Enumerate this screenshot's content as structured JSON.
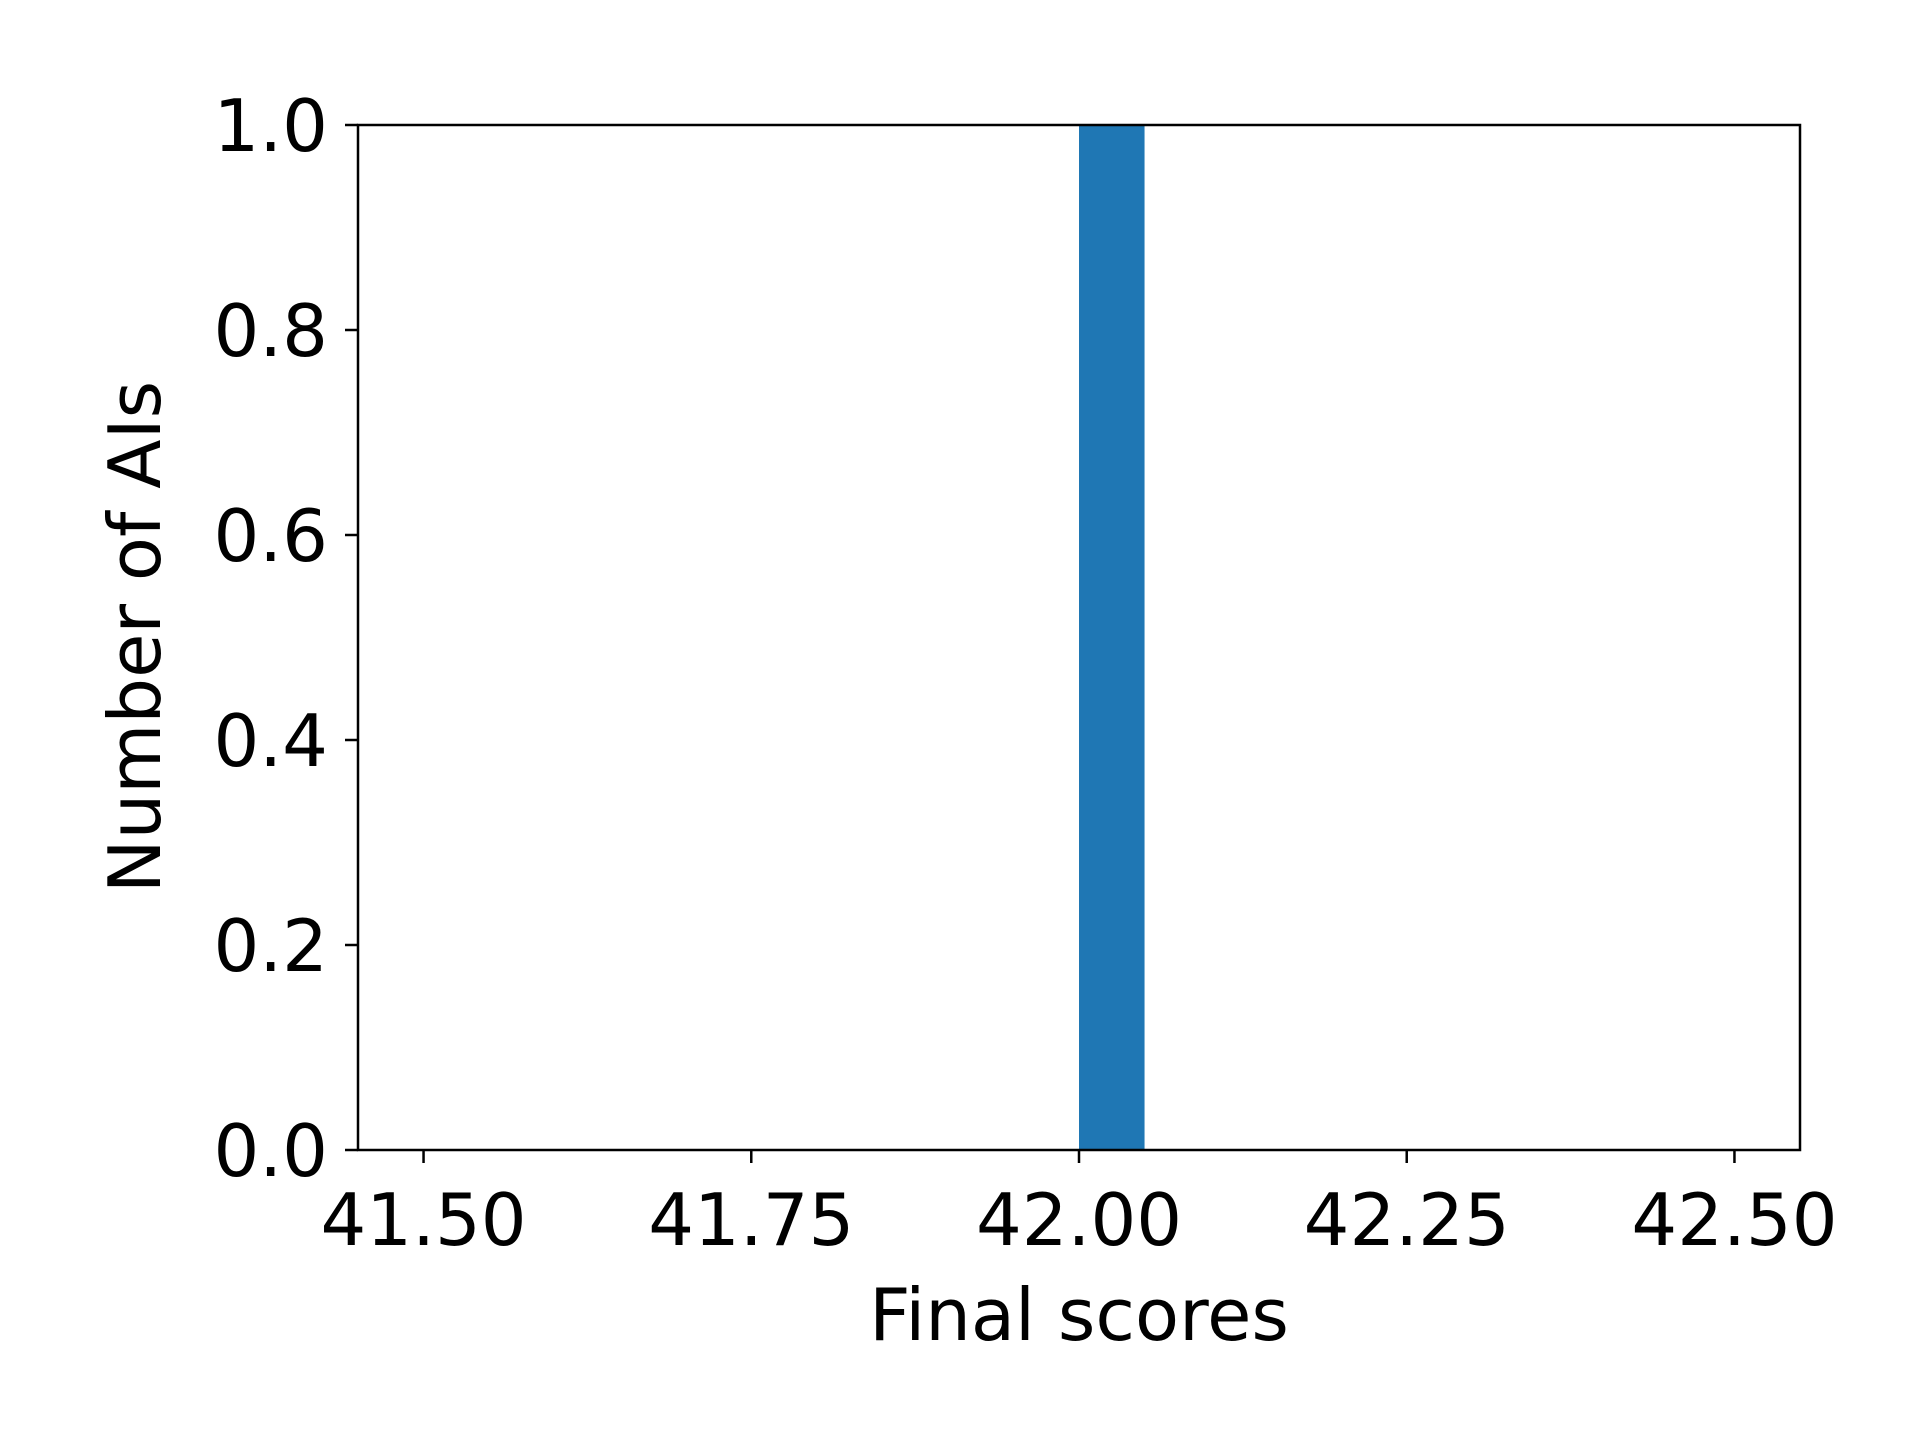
{
  "chart_data": {
    "type": "bar",
    "title": "",
    "xlabel": "Final scores",
    "ylabel": "Number of AIs",
    "xlim": [
      41.45,
      42.55
    ],
    "ylim": [
      0.0,
      1.0
    ],
    "x_ticks": [
      41.5,
      41.75,
      42.0,
      42.25,
      42.5
    ],
    "x_tick_labels": [
      "41.50",
      "41.75",
      "42.00",
      "42.25",
      "42.50"
    ],
    "y_ticks": [
      0.0,
      0.2,
      0.4,
      0.6,
      0.8,
      1.0
    ],
    "y_tick_labels": [
      "0.0",
      "0.2",
      "0.4",
      "0.6",
      "0.8",
      "1.0"
    ],
    "bars": [
      {
        "x_start": 42.0,
        "x_end": 42.05,
        "value": 1.0
      }
    ],
    "bar_color": "#1f77b4",
    "grid": false,
    "legend": "none"
  }
}
